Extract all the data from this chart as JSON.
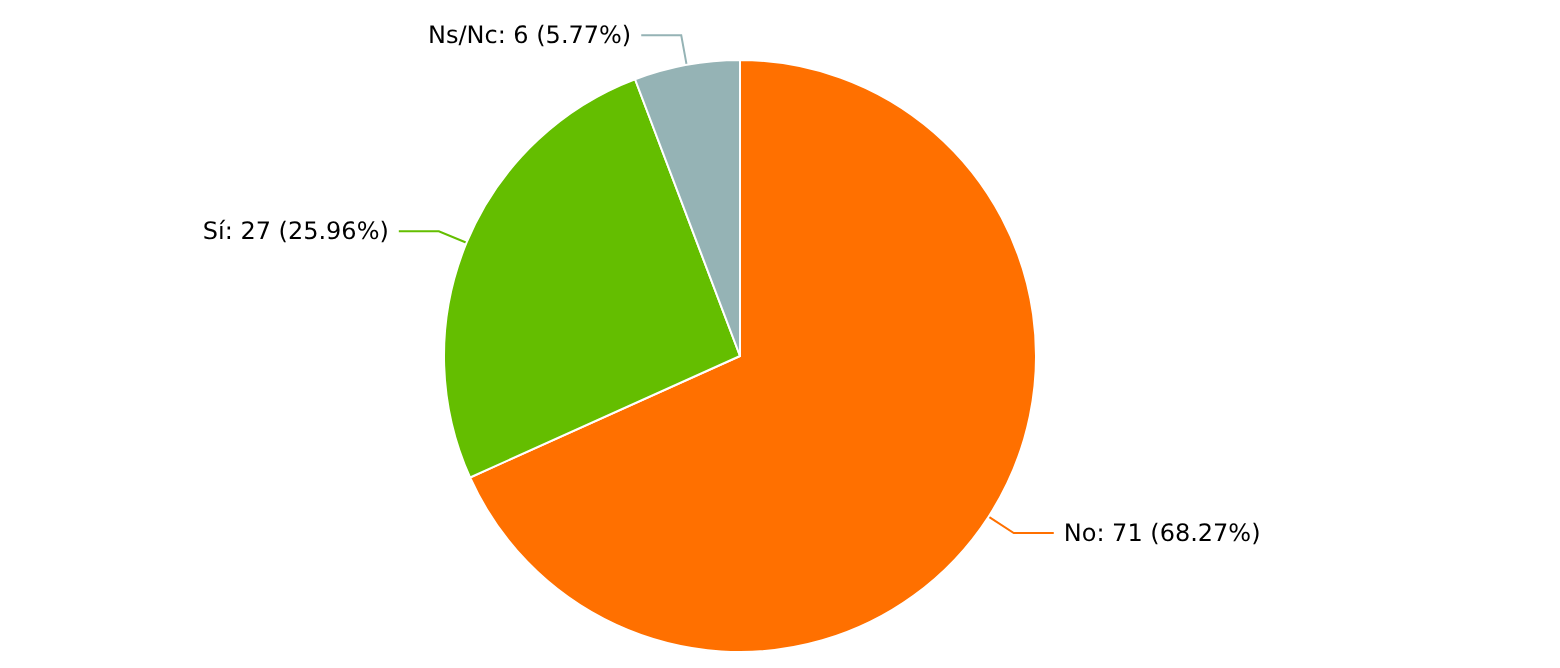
{
  "chart_data": {
    "type": "pie",
    "categories": [
      "No",
      "Sí",
      "Ns/Nc"
    ],
    "values": [
      71,
      27,
      6
    ],
    "colors": [
      "#ff7000",
      "#64be00",
      "#95b3b5"
    ],
    "value_labels": [
      "71 (68.27%)",
      "27 (25.96%)",
      "6 (5.77%)"
    ],
    "legend": false
  }
}
